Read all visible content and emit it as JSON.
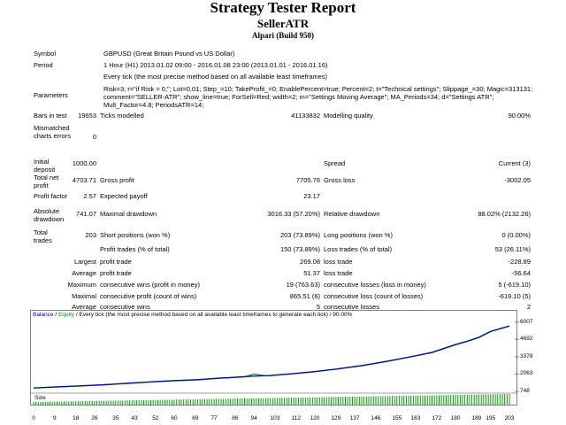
{
  "header": {
    "title": "Strategy Tester Report",
    "expert": "SellerATR",
    "broker": "Alpari (Build 950)"
  },
  "report": {
    "symbol_label": "Symbol",
    "symbol_value": "GBPUSD (Great Britain Pound vs US Dollar)",
    "period_label": "Period",
    "period_value": "1 Hour (H1) 2013.01.02 09:00 - 2016.01.08 23:00 (2013.01.01 - 2016.01.16)",
    "model_label": "Model",
    "model_value": "Every tick (the most precise method based on all available least timeframes)",
    "parameters_label": "Parameters",
    "parameters_value": "Risk=3; r=\"if Risk = 0,\"; Lot=0.01; Step_=10; TakeProfit_=0; EnablePercent=true; Percent=2; t=\"Technical settings\"; Slippage_=30; Magic=313131; comment=\"SELLER-ATR\"; show_line=true; ForSell=Red; width=2; m=\"Settings Moving Average\"; MA_Periods=34; d=\"Settings ATR\"; Mult_Factor=4.8; PeriodsATR=14;",
    "bars_label": "Bars in test",
    "bars_value": "19653",
    "ticks_label": "Ticks modelled",
    "ticks_value": "41133832",
    "quality_label": "Modelling quality",
    "quality_value": "90.00%",
    "mismatched_label": "Mismatched charts errors",
    "mismatched_value": "0",
    "deposit_label": "Initial deposit",
    "deposit_value": "1000.00",
    "spread_label": "Spread",
    "spread_value": "Current (3)",
    "netprofit_label": "Total net profit",
    "netprofit_value": "4703.71",
    "grossprofit_label": "Gross profit",
    "grossprofit_value": "7705.76",
    "grossloss_label": "Gross loss",
    "grossloss_value": "-3002.05",
    "pf_label": "Profit factor",
    "pf_value": "2.57",
    "payoff_label": "Expected payoff",
    "payoff_value": "23.17",
    "absdd_label": "Absolute drawdown",
    "absdd_value": "741.07",
    "maxdd_label": "Maximal drawdown",
    "maxdd_value": "3016.33 (57.20%)",
    "reldd_label": "Relative drawdown",
    "reldd_value": "88.02% (2132.26)",
    "trades_label": "Total trades",
    "trades_value": "203",
    "short_label": "Short positions (won %)",
    "short_value": "203 (73.89%)",
    "long_label": "Long positions (won %)",
    "long_value": "0 (0.00%)",
    "profit_trades_label": "Profit trades (% of total)",
    "profit_trades_value": "150 (73.89%)",
    "loss_trades_label": "Loss trades (% of total)",
    "loss_trades_value": "53 (26.11%)",
    "largest_label": "Largest",
    "largest_profit_label": "profit trade",
    "largest_profit_value": "269.08",
    "largest_loss_label": "loss trade",
    "largest_loss_value": "-228.89",
    "average_label": "Average",
    "average_profit_label": "profit trade",
    "average_profit_value": "51.37",
    "average_loss_label": "loss trade",
    "average_loss_value": "-56.64",
    "maximum_label": "Maximum",
    "max_wins_label": "consecutive wins (profit in money)",
    "max_wins_value": "19 (763.63)",
    "max_losses_label": "consecutive losses (loss in money)",
    "max_losses_value": "5 (-619.10)",
    "maximal_label": "Maximal",
    "maximal_profit_label": "consecutive profit (count of wins)",
    "maximal_profit_value": "865.51 (6)",
    "maximal_loss_label": "consecutive loss (count of losses)",
    "maximal_loss_value": "-619.10 (5)",
    "avg_label": "Average",
    "avg_wins_label": "consecutive wins",
    "avg_wins_value": "5",
    "avg_losses_label": "consecutive losses",
    "avg_losses_value": "2"
  },
  "chart_legend": {
    "balance": "Balance",
    "sep": "/",
    "equity": "Equity",
    "rest": "/ Every tick (the most precise method based on all available least timeframes to generate each tick) / 90.00%"
  },
  "chart_data": {
    "type": "line",
    "ylim": [
      748,
      6250
    ],
    "y_ticks": [
      "6007",
      "4692",
      "3378",
      "2063",
      "748"
    ],
    "x_ticks": [
      "0",
      "9",
      "18",
      "26",
      "35",
      "43",
      "52",
      "60",
      "69",
      "77",
      "86",
      "94",
      "103",
      "112",
      "120",
      "129",
      "137",
      "146",
      "155",
      "163",
      "172",
      "180",
      "189",
      "195",
      "203"
    ],
    "size_label": "Size",
    "colors": {
      "balance": "#0000c0",
      "equity": "#00a000",
      "size": "#00a000"
    },
    "series": [
      {
        "name": "Balance",
        "x": [
          0,
          10,
          20,
          30,
          40,
          50,
          60,
          70,
          80,
          90,
          100,
          110,
          120,
          130,
          140,
          150,
          160,
          170,
          175,
          180,
          185,
          190,
          195,
          200,
          203
        ],
        "values": [
          1000,
          1090,
          1170,
          1250,
          1360,
          1470,
          1560,
          1640,
          1760,
          1860,
          1940,
          2080,
          2250,
          2460,
          2700,
          3000,
          3340,
          3700,
          4000,
          4300,
          4550,
          4850,
          5300,
          5550,
          5700
        ]
      },
      {
        "name": "Equity",
        "x": [
          0,
          10,
          20,
          30,
          40,
          50,
          60,
          70,
          80,
          90,
          94,
          98,
          100,
          110,
          120,
          130,
          140,
          150,
          160,
          170,
          175,
          180,
          185,
          190,
          195,
          200,
          203
        ],
        "values": [
          1000,
          1080,
          1160,
          1240,
          1350,
          1460,
          1550,
          1620,
          1750,
          1840,
          2050,
          1950,
          1930,
          2070,
          2240,
          2450,
          2690,
          2990,
          3330,
          3690,
          3980,
          4280,
          4530,
          4830,
          5280,
          5540,
          5690
        ]
      }
    ]
  }
}
